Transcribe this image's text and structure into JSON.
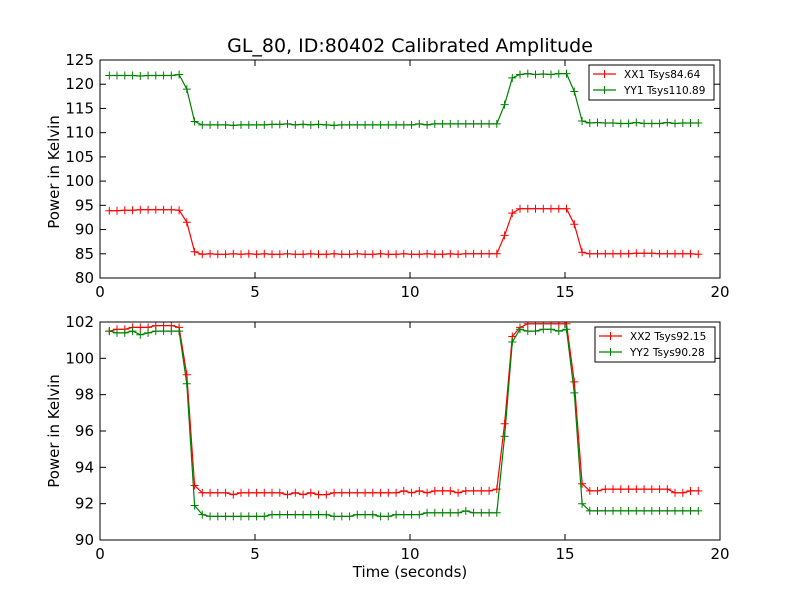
{
  "chart_data": [
    {
      "type": "line",
      "title": "GL_80, ID:80402 Calibrated Amplitude",
      "xlabel": "",
      "ylabel": "Power in Kelvin",
      "xlim": [
        0,
        20
      ],
      "ylim": [
        80,
        125
      ],
      "xticks": [
        "0",
        "5",
        "10",
        "15",
        "20"
      ],
      "yticks": [
        "80",
        "85",
        "90",
        "95",
        "100",
        "105",
        "110",
        "115",
        "120",
        "125"
      ],
      "legend_position": "top-right",
      "x": [
        0.3,
        0.55,
        0.8,
        1.05,
        1.3,
        1.55,
        1.8,
        2.05,
        2.3,
        2.55,
        2.8,
        3.05,
        3.3,
        3.55,
        3.8,
        4.05,
        4.3,
        4.55,
        4.8,
        5.05,
        5.3,
        5.55,
        5.8,
        6.05,
        6.3,
        6.55,
        6.8,
        7.05,
        7.3,
        7.55,
        7.8,
        8.05,
        8.3,
        8.55,
        8.8,
        9.05,
        9.3,
        9.55,
        9.8,
        10.05,
        10.3,
        10.55,
        10.8,
        11.05,
        11.3,
        11.55,
        11.8,
        12.05,
        12.3,
        12.55,
        12.8,
        13.05,
        13.3,
        13.55,
        13.8,
        14.05,
        14.3,
        14.55,
        14.8,
        15.05,
        15.3,
        15.55,
        15.8,
        16.05,
        16.3,
        16.55,
        16.8,
        17.05,
        17.3,
        17.55,
        17.8,
        18.05,
        18.3,
        18.55,
        18.8,
        19.05,
        19.3
      ],
      "series": [
        {
          "name": "XX1 Tsys84.64",
          "color": "#ff0000",
          "values": [
            93.9,
            93.9,
            94.0,
            94.0,
            94.1,
            94.1,
            94.1,
            94.1,
            94.1,
            94.0,
            91.5,
            85.4,
            84.9,
            85.0,
            84.9,
            84.9,
            85.0,
            84.9,
            85.0,
            84.9,
            85.0,
            84.9,
            84.9,
            85.0,
            84.9,
            84.9,
            85.0,
            84.9,
            84.9,
            85.0,
            84.9,
            84.9,
            85.0,
            84.9,
            84.9,
            85.0,
            84.9,
            84.9,
            85.0,
            84.9,
            84.9,
            85.0,
            84.9,
            84.9,
            85.0,
            84.9,
            85.0,
            85.0,
            85.0,
            85.0,
            85.0,
            88.8,
            93.4,
            94.3,
            94.3,
            94.3,
            94.3,
            94.3,
            94.3,
            94.3,
            91.1,
            85.3,
            85.0,
            85.0,
            85.0,
            85.0,
            85.0,
            85.0,
            85.1,
            85.1,
            85.1,
            85.0,
            85.0,
            85.0,
            85.0,
            85.0,
            84.9
          ]
        },
        {
          "name": "YY1 Tsys110.89",
          "color": "#008000",
          "values": [
            121.8,
            121.8,
            121.8,
            121.8,
            121.7,
            121.8,
            121.8,
            121.8,
            121.8,
            122.0,
            119.0,
            112.3,
            111.6,
            111.6,
            111.6,
            111.6,
            111.5,
            111.6,
            111.6,
            111.6,
            111.6,
            111.7,
            111.7,
            111.8,
            111.6,
            111.7,
            111.6,
            111.7,
            111.6,
            111.5,
            111.6,
            111.6,
            111.6,
            111.6,
            111.6,
            111.6,
            111.6,
            111.6,
            111.6,
            111.6,
            111.8,
            111.6,
            111.8,
            111.8,
            111.8,
            111.8,
            111.8,
            111.8,
            111.8,
            111.8,
            111.8,
            115.8,
            121.3,
            122.0,
            122.2,
            122.0,
            122.1,
            122.0,
            122.2,
            122.2,
            118.5,
            112.4,
            112.0,
            112.1,
            112.0,
            112.0,
            111.9,
            111.9,
            112.1,
            111.9,
            111.9,
            111.9,
            112.1,
            111.9,
            112.0,
            112.0,
            112.0
          ]
        }
      ]
    },
    {
      "type": "line",
      "title": "",
      "xlabel": "Time (seconds)",
      "ylabel": "Power in Kelvin",
      "xlim": [
        0,
        20
      ],
      "ylim": [
        90,
        102
      ],
      "xticks": [
        "0",
        "5",
        "10",
        "15",
        "20"
      ],
      "yticks": [
        "90",
        "92",
        "94",
        "96",
        "98",
        "100",
        "102"
      ],
      "legend_position": "top-right",
      "x": [
        0.3,
        0.55,
        0.8,
        1.05,
        1.3,
        1.55,
        1.8,
        2.05,
        2.3,
        2.55,
        2.8,
        3.05,
        3.3,
        3.55,
        3.8,
        4.05,
        4.3,
        4.55,
        4.8,
        5.05,
        5.3,
        5.55,
        5.8,
        6.05,
        6.3,
        6.55,
        6.8,
        7.05,
        7.3,
        7.55,
        7.8,
        8.05,
        8.3,
        8.55,
        8.8,
        9.05,
        9.3,
        9.55,
        9.8,
        10.05,
        10.3,
        10.55,
        10.8,
        11.05,
        11.3,
        11.55,
        11.8,
        12.05,
        12.3,
        12.55,
        12.8,
        13.05,
        13.3,
        13.55,
        13.8,
        14.05,
        14.3,
        14.55,
        14.8,
        15.05,
        15.3,
        15.55,
        15.8,
        16.05,
        16.3,
        16.55,
        16.8,
        17.05,
        17.3,
        17.55,
        17.8,
        18.05,
        18.3,
        18.55,
        18.8,
        19.05,
        19.3
      ],
      "series": [
        {
          "name": "XX2 Tsys92.15",
          "color": "#ff0000",
          "values": [
            101.5,
            101.6,
            101.6,
            101.7,
            101.7,
            101.7,
            101.8,
            101.8,
            101.8,
            101.7,
            99.1,
            93.0,
            92.6,
            92.6,
            92.6,
            92.6,
            92.5,
            92.6,
            92.6,
            92.6,
            92.6,
            92.6,
            92.6,
            92.5,
            92.6,
            92.5,
            92.6,
            92.5,
            92.5,
            92.6,
            92.6,
            92.6,
            92.6,
            92.6,
            92.6,
            92.6,
            92.6,
            92.6,
            92.7,
            92.6,
            92.7,
            92.6,
            92.7,
            92.7,
            92.7,
            92.6,
            92.7,
            92.7,
            92.7,
            92.7,
            92.8,
            96.4,
            101.2,
            101.7,
            101.9,
            101.9,
            101.9,
            101.9,
            101.9,
            101.9,
            98.7,
            93.1,
            92.7,
            92.7,
            92.8,
            92.8,
            92.8,
            92.8,
            92.8,
            92.8,
            92.8,
            92.8,
            92.8,
            92.6,
            92.6,
            92.7,
            92.7
          ]
        },
        {
          "name": "YY2 Tsys90.28",
          "color": "#008000",
          "values": [
            101.5,
            101.4,
            101.4,
            101.5,
            101.3,
            101.4,
            101.5,
            101.5,
            101.5,
            101.5,
            98.6,
            91.9,
            91.4,
            91.3,
            91.3,
            91.3,
            91.3,
            91.3,
            91.3,
            91.3,
            91.3,
            91.4,
            91.4,
            91.4,
            91.4,
            91.4,
            91.4,
            91.4,
            91.4,
            91.3,
            91.3,
            91.3,
            91.4,
            91.4,
            91.4,
            91.3,
            91.3,
            91.4,
            91.4,
            91.4,
            91.4,
            91.5,
            91.5,
            91.5,
            91.5,
            91.5,
            91.6,
            91.5,
            91.5,
            91.5,
            91.5,
            95.7,
            100.9,
            101.6,
            101.5,
            101.5,
            101.6,
            101.6,
            101.5,
            101.6,
            98.1,
            92.0,
            91.6,
            91.6,
            91.6,
            91.6,
            91.6,
            91.6,
            91.6,
            91.6,
            91.6,
            91.6,
            91.6,
            91.6,
            91.6,
            91.6,
            91.6
          ]
        }
      ]
    }
  ]
}
